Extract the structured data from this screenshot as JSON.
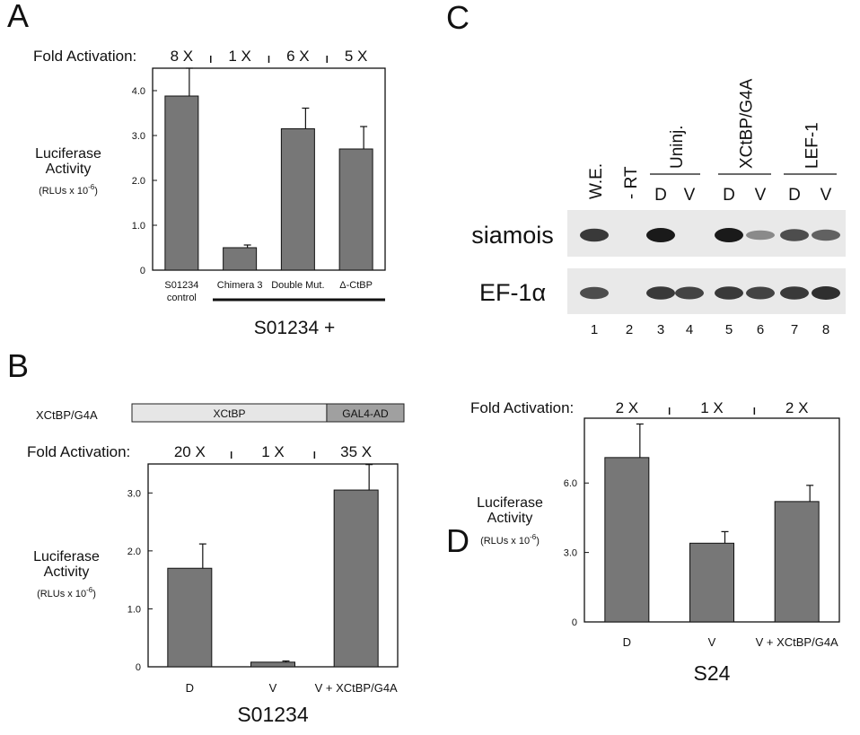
{
  "panels": {
    "A": {
      "letter": "A"
    },
    "B": {
      "letter": "B"
    },
    "C": {
      "letter": "C"
    },
    "D": {
      "letter": "D"
    }
  },
  "chart_data": [
    {
      "panel": "A",
      "type": "bar",
      "fold_label": "Fold Activation:",
      "fold_values": [
        "8 X",
        "1 X",
        "6 X",
        "5 X"
      ],
      "ylabel_lines": [
        "Luciferase",
        "Activity"
      ],
      "yunit": {
        "base": "(RLUs x 10",
        "exp": "-6",
        "close": ")"
      },
      "ylim": [
        0,
        4.5
      ],
      "yticks": [
        0,
        1.0,
        2.0,
        3.0,
        4.0
      ],
      "ytick_labels": [
        "0",
        "1.0",
        "2.0",
        "3.0",
        "4.0"
      ],
      "categories": [
        [
          "S01234",
          "control"
        ],
        [
          "Chimera 3"
        ],
        [
          "Double Mut."
        ],
        [
          "Δ-CtBP"
        ]
      ],
      "values": [
        3.88,
        0.5,
        3.15,
        2.7
      ],
      "errors": [
        0.62,
        0.06,
        0.46,
        0.5
      ],
      "group_label": "S01234 +",
      "bar_color": "#777777"
    },
    {
      "panel": "B",
      "type": "bar",
      "construct_name": "XCtBP/G4A",
      "construct_segments": [
        {
          "label": "XCtBP",
          "color": "#e6e6e6",
          "fraction": 0.716
        },
        {
          "label": "GAL4-AD",
          "color": "#a0a0a0",
          "fraction": 0.284
        }
      ],
      "fold_label": "Fold Activation:",
      "fold_values": [
        "20 X",
        "1 X",
        "35 X"
      ],
      "ylabel_lines": [
        "Luciferase",
        "Activity"
      ],
      "yunit": {
        "base": "(RLUs x 10",
        "exp": "-6",
        "close": ")"
      },
      "ylim": [
        0,
        3.5
      ],
      "yticks": [
        0,
        1.0,
        2.0,
        3.0
      ],
      "ytick_labels": [
        "0",
        "1.0",
        "2.0",
        "3.0"
      ],
      "categories": [
        [
          "D"
        ],
        [
          "V"
        ],
        [
          "V + XCtBP/G4A"
        ]
      ],
      "values": [
        1.7,
        0.08,
        3.05
      ],
      "errors": [
        0.42,
        0.02,
        0.44
      ],
      "reporter_label": "S01234",
      "bar_color": "#777777"
    },
    {
      "panel": "D",
      "type": "bar",
      "fold_label": "Fold Activation:",
      "fold_values": [
        "2 X",
        "1 X",
        "2 X"
      ],
      "ylabel_lines": [
        "Luciferase",
        "Activity"
      ],
      "yunit": {
        "base": "(RLUs x 10",
        "exp": "-6",
        "close": ")"
      },
      "ylim": [
        0,
        8.8
      ],
      "yticks": [
        0,
        3.0,
        6.0
      ],
      "ytick_labels": [
        "0",
        "3.0",
        "6.0"
      ],
      "categories": [
        [
          "D"
        ],
        [
          "V"
        ],
        [
          "V + XCtBP/G4A"
        ]
      ],
      "values": [
        7.1,
        3.4,
        5.2
      ],
      "errors": [
        1.45,
        0.5,
        0.7
      ],
      "reporter_label": "S24",
      "bar_color": "#777777"
    }
  ],
  "gel": {
    "panel": "C",
    "headers": [
      {
        "label": "W.E.",
        "lanes": [
          1
        ]
      },
      {
        "label": "- RT",
        "lanes": [
          2
        ]
      },
      {
        "label": "Uninj.",
        "lanes": [
          3,
          4
        ],
        "sub": [
          "D",
          "V"
        ]
      },
      {
        "label": "XCtBP/G4A",
        "lanes": [
          5,
          6
        ],
        "sub": [
          "D",
          "V"
        ]
      },
      {
        "label": "LEF-1",
        "lanes": [
          7,
          8
        ],
        "sub": [
          "D",
          "V"
        ]
      }
    ],
    "rows": [
      {
        "label": "siamois",
        "intensities": [
          0.85,
          0.0,
          1.0,
          0.0,
          1.0,
          0.45,
          0.75,
          0.65
        ]
      },
      {
        "label": "EF-1α",
        "intensities": [
          0.75,
          0.0,
          0.85,
          0.8,
          0.85,
          0.8,
          0.85,
          0.9
        ]
      }
    ],
    "lane_numbers": [
      "1",
      "2",
      "3",
      "4",
      "5",
      "6",
      "7",
      "8"
    ]
  }
}
